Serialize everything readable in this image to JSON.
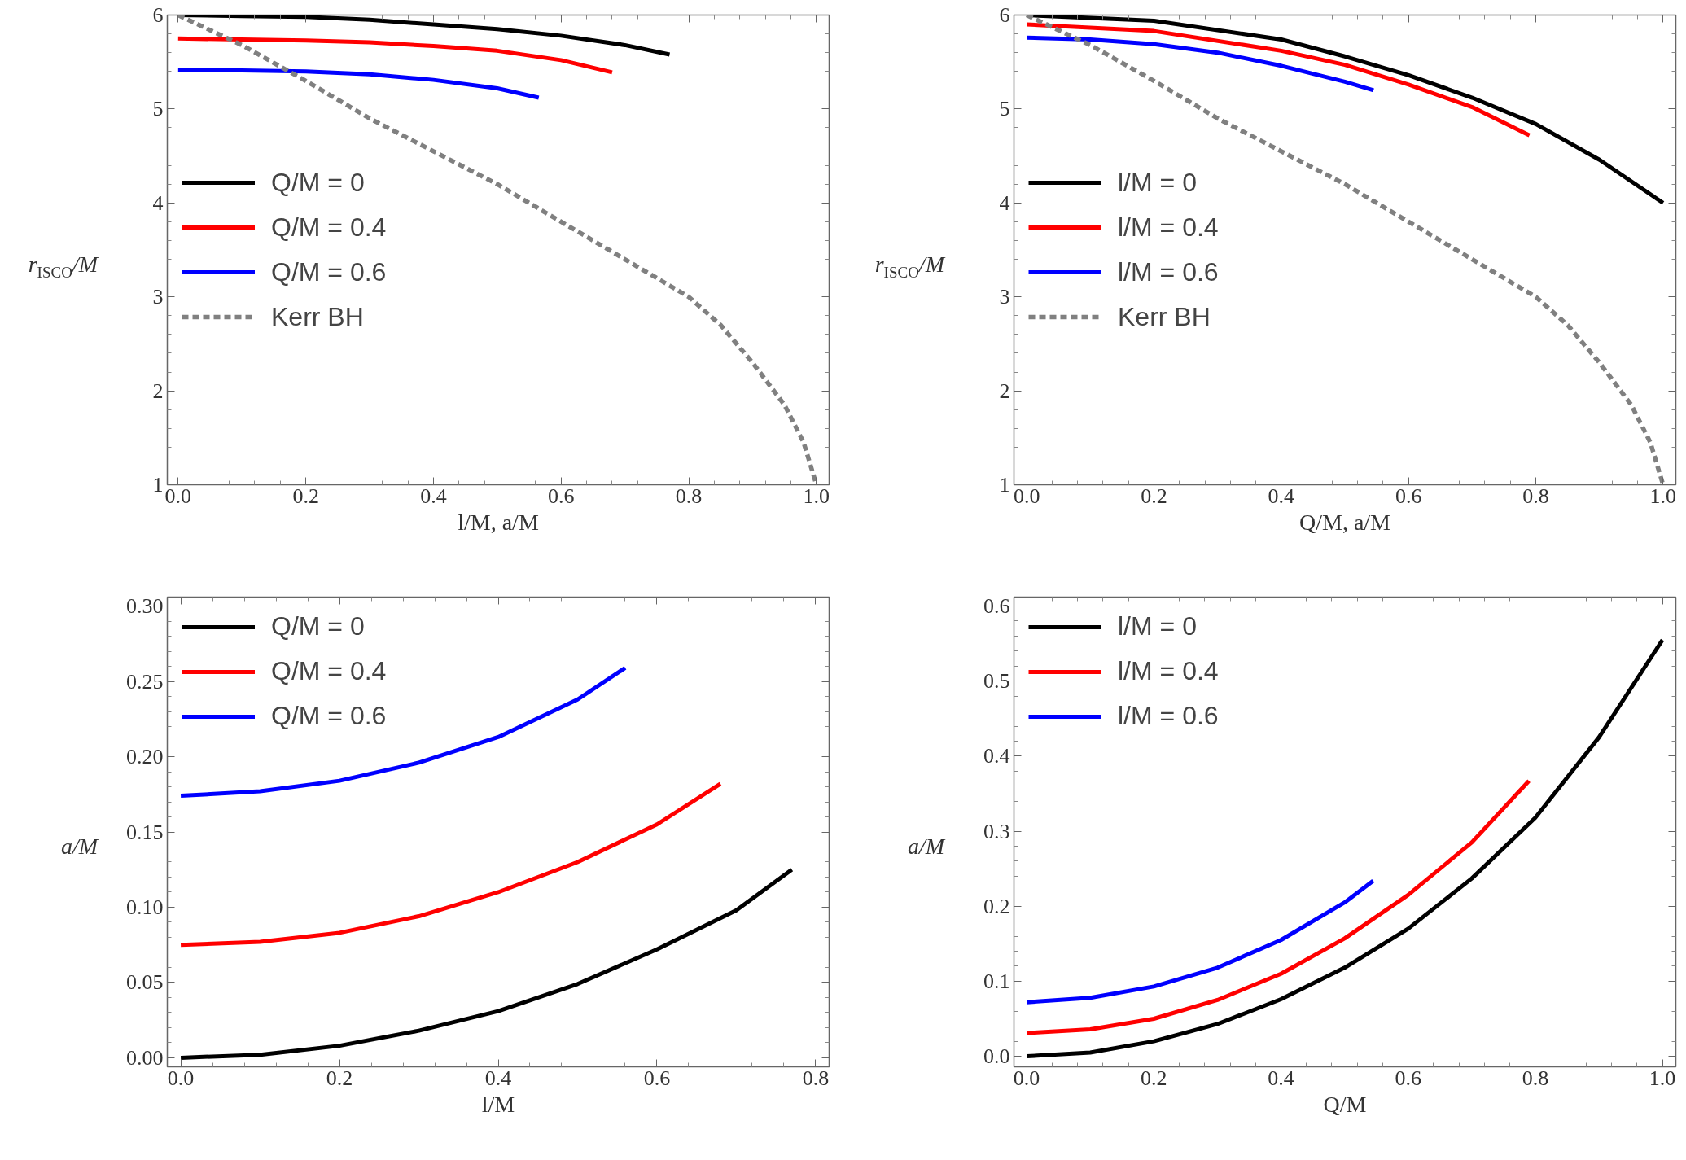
{
  "chart_data": [
    {
      "type": "line",
      "xlabel": "l/M, a/M",
      "ylabel": "r$_{ISCO}$/M",
      "xlim": [
        -0.017,
        1.02
      ],
      "ylim": [
        1,
        6
      ],
      "xticks": [
        {
          "value": 0,
          "label": "0.0"
        },
        {
          "value": 0.2,
          "label": "0.2"
        },
        {
          "value": 0.4,
          "label": "0.4"
        },
        {
          "value": 0.6,
          "label": "0.6"
        },
        {
          "value": 0.8,
          "label": "0.8"
        },
        {
          "value": 1.0,
          "label": "1.0"
        }
      ],
      "yticks": [
        1,
        2,
        3,
        4,
        5,
        6
      ],
      "legend": "left",
      "line_style": "solid",
      "grid": false,
      "series": [
        {
          "name": "Q/M = 0",
          "color": "#000000",
          "x": [
            0,
            0.1,
            0.2,
            0.3,
            0.4,
            0.5,
            0.6,
            0.7,
            0.77
          ],
          "values": [
            6.0,
            5.99,
            5.98,
            5.95,
            5.9,
            5.85,
            5.78,
            5.68,
            5.58
          ]
        },
        {
          "name": "Q/M = 0.4",
          "color": "#ff0000",
          "x": [
            0,
            0.1,
            0.2,
            0.3,
            0.4,
            0.5,
            0.6,
            0.68
          ],
          "values": [
            5.75,
            5.74,
            5.73,
            5.71,
            5.67,
            5.62,
            5.52,
            5.39
          ]
        },
        {
          "name": "Q/M = 0.6",
          "color": "#0000ff",
          "x": [
            0,
            0.1,
            0.2,
            0.3,
            0.4,
            0.5,
            0.565
          ],
          "values": [
            5.42,
            5.41,
            5.4,
            5.37,
            5.31,
            5.22,
            5.12
          ]
        },
        {
          "name": "Kerr BH",
          "color": "#808080",
          "line_style": "dashed",
          "x": [
            0,
            0.05,
            0.1,
            0.2,
            0.3,
            0.4,
            0.5,
            0.6,
            0.7,
            0.8,
            0.85,
            0.9,
            0.95,
            0.98,
            1.0
          ],
          "values": [
            6.0,
            5.84,
            5.68,
            5.3,
            4.9,
            4.55,
            4.2,
            3.8,
            3.4,
            3.0,
            2.7,
            2.3,
            1.85,
            1.45,
            1.0
          ]
        }
      ]
    },
    {
      "type": "line",
      "xlabel": "Q/M, a/M",
      "ylabel": "r$_{ISCO}$/M",
      "xlim": [
        -0.02,
        1.02
      ],
      "ylim": [
        1,
        6
      ],
      "xticks": [
        {
          "value": 0,
          "label": "0.0"
        },
        {
          "value": 0.2,
          "label": "0.2"
        },
        {
          "value": 0.4,
          "label": "0.4"
        },
        {
          "value": 0.6,
          "label": "0.6"
        },
        {
          "value": 0.8,
          "label": "0.8"
        },
        {
          "value": 1.0,
          "label": "1.0"
        }
      ],
      "yticks": [
        1,
        2,
        3,
        4,
        5,
        6
      ],
      "legend": "left",
      "line_style": "solid",
      "grid": false,
      "series": [
        {
          "name": "l/M = 0",
          "color": "#000000",
          "x": [
            0,
            0.2,
            0.4,
            0.5,
            0.6,
            0.7,
            0.8,
            0.9,
            1.0
          ],
          "values": [
            6.0,
            5.94,
            5.74,
            5.56,
            5.36,
            5.12,
            4.84,
            4.46,
            4.0
          ]
        },
        {
          "name": "l/M = 0.4",
          "color": "#ff0000",
          "x": [
            0,
            0.2,
            0.4,
            0.5,
            0.6,
            0.7,
            0.79
          ],
          "values": [
            5.9,
            5.83,
            5.62,
            5.47,
            5.26,
            5.02,
            4.72
          ]
        },
        {
          "name": "l/M = 0.6",
          "color": "#0000ff",
          "x": [
            0,
            0.1,
            0.2,
            0.3,
            0.4,
            0.5,
            0.545
          ],
          "values": [
            5.76,
            5.74,
            5.69,
            5.6,
            5.46,
            5.29,
            5.2
          ]
        },
        {
          "name": "Kerr BH",
          "color": "#808080",
          "line_style": "dashed",
          "x": [
            0,
            0.05,
            0.1,
            0.2,
            0.3,
            0.4,
            0.5,
            0.6,
            0.7,
            0.8,
            0.85,
            0.9,
            0.95,
            0.98,
            1.0
          ],
          "values": [
            6.0,
            5.84,
            5.68,
            5.3,
            4.9,
            4.55,
            4.2,
            3.8,
            3.4,
            3.0,
            2.7,
            2.3,
            1.85,
            1.45,
            1.0
          ]
        }
      ]
    },
    {
      "type": "line",
      "xlabel": "l/M",
      "ylabel": "a/M",
      "xlim": [
        -0.017,
        0.817
      ],
      "ylim": [
        -0.006,
        0.306
      ],
      "xticks": [
        {
          "value": 0,
          "label": "0.0"
        },
        {
          "value": 0.2,
          "label": "0.2"
        },
        {
          "value": 0.4,
          "label": "0.4"
        },
        {
          "value": 0.6,
          "label": "0.6"
        },
        {
          "value": 0.8,
          "label": "0.8"
        }
      ],
      "yticks": [
        {
          "value": 0,
          "label": "0.00"
        },
        {
          "value": 0.05,
          "label": "0.05"
        },
        {
          "value": 0.1,
          "label": "0.10"
        },
        {
          "value": 0.15,
          "label": "0.15"
        },
        {
          "value": 0.2,
          "label": "0.20"
        },
        {
          "value": 0.25,
          "label": "0.25"
        },
        {
          "value": 0.3,
          "label": "0.30"
        }
      ],
      "legend": "top left",
      "line_style": "solid",
      "grid": false,
      "series": [
        {
          "name": "Q/M = 0",
          "color": "#000000",
          "x": [
            0,
            0.1,
            0.2,
            0.3,
            0.4,
            0.5,
            0.6,
            0.7,
            0.77
          ],
          "values": [
            0,
            0.002,
            0.008,
            0.018,
            0.031,
            0.049,
            0.072,
            0.098,
            0.125
          ]
        },
        {
          "name": "Q/M = 0.4",
          "color": "#ff0000",
          "x": [
            0,
            0.1,
            0.2,
            0.3,
            0.4,
            0.5,
            0.6,
            0.68
          ],
          "values": [
            0.075,
            0.077,
            0.083,
            0.094,
            0.11,
            0.13,
            0.155,
            0.182
          ]
        },
        {
          "name": "Q/M = 0.6",
          "color": "#0000ff",
          "x": [
            0,
            0.1,
            0.2,
            0.3,
            0.4,
            0.5,
            0.56
          ],
          "values": [
            0.174,
            0.177,
            0.184,
            0.196,
            0.213,
            0.238,
            0.259
          ]
        }
      ]
    },
    {
      "type": "line",
      "xlabel": "Q/M",
      "ylabel": "a/M",
      "xlim": [
        -0.02,
        1.021
      ],
      "ylim": [
        -0.014,
        0.612
      ],
      "xticks": [
        {
          "value": 0,
          "label": "0.0"
        },
        {
          "value": 0.2,
          "label": "0.2"
        },
        {
          "value": 0.4,
          "label": "0.4"
        },
        {
          "value": 0.6,
          "label": "0.6"
        },
        {
          "value": 0.8,
          "label": "0.8"
        },
        {
          "value": 1.0,
          "label": "1.0"
        }
      ],
      "yticks": [
        {
          "value": 0,
          "label": "0.0"
        },
        {
          "value": 0.1,
          "label": "0.1"
        },
        {
          "value": 0.2,
          "label": "0.2"
        },
        {
          "value": 0.3,
          "label": "0.3"
        },
        {
          "value": 0.4,
          "label": "0.4"
        },
        {
          "value": 0.5,
          "label": "0.5"
        },
        {
          "value": 0.6,
          "label": "0.6"
        }
      ],
      "legend": "top left",
      "line_style": "solid",
      "grid": false,
      "series": [
        {
          "name": "l/M = 0",
          "color": "#000000",
          "x": [
            0,
            0.1,
            0.2,
            0.3,
            0.4,
            0.5,
            0.6,
            0.7,
            0.8,
            0.9,
            1.0
          ],
          "values": [
            0,
            0.005,
            0.02,
            0.043,
            0.076,
            0.118,
            0.17,
            0.237,
            0.318,
            0.425,
            0.555
          ]
        },
        {
          "name": "l/M = 0.4",
          "color": "#ff0000",
          "x": [
            0,
            0.1,
            0.2,
            0.3,
            0.4,
            0.5,
            0.6,
            0.7,
            0.79
          ],
          "values": [
            0.031,
            0.036,
            0.05,
            0.075,
            0.11,
            0.157,
            0.215,
            0.285,
            0.367
          ]
        },
        {
          "name": "l/M = 0.6",
          "color": "#0000ff",
          "x": [
            0,
            0.1,
            0.2,
            0.3,
            0.4,
            0.5,
            0.545
          ],
          "values": [
            0.072,
            0.078,
            0.093,
            0.118,
            0.155,
            0.205,
            0.234
          ]
        }
      ]
    }
  ]
}
